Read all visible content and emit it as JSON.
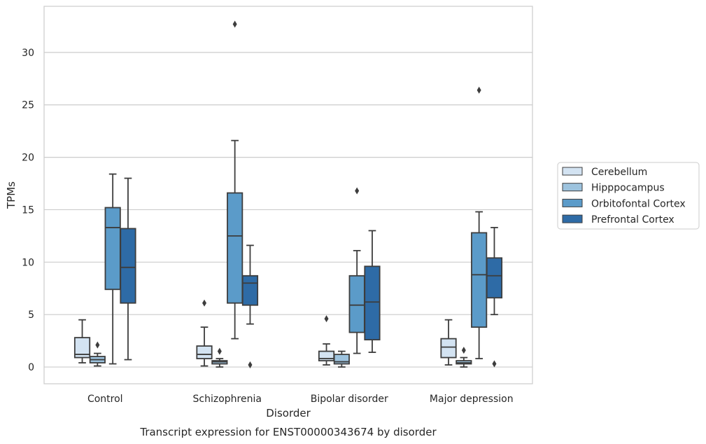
{
  "chart_data": {
    "type": "box",
    "title": "Transcript expression for ENST00000343674 by disorder",
    "xlabel": "Disorder",
    "ylabel": "TPMs",
    "ylim": [
      -1.6,
      34.4
    ],
    "yticks": [
      0,
      5,
      10,
      15,
      20,
      25,
      30
    ],
    "grid": "horizontal",
    "legend_position": "right",
    "categories": [
      "Control",
      "Schizophrenia",
      "Bipolar disorder",
      "Major depression"
    ],
    "series": [
      {
        "name": "Cerebellum",
        "color": "#d3e3f2",
        "boxes": [
          {
            "whislo": 0.4,
            "q1": 0.9,
            "med": 1.2,
            "q3": 2.8,
            "whishi": 4.5,
            "fliers": []
          },
          {
            "whislo": 0.1,
            "q1": 0.8,
            "med": 1.2,
            "q3": 2.0,
            "whishi": 3.8,
            "fliers": [
              6.1
            ]
          },
          {
            "whislo": 0.2,
            "q1": 0.6,
            "med": 0.8,
            "q3": 1.5,
            "whishi": 2.2,
            "fliers": [
              4.6
            ]
          },
          {
            "whislo": 0.2,
            "q1": 0.9,
            "med": 1.9,
            "q3": 2.7,
            "whishi": 4.5,
            "fliers": []
          }
        ]
      },
      {
        "name": "Hipppocampus",
        "color": "#9dc3de",
        "boxes": [
          {
            "whislo": 0.1,
            "q1": 0.4,
            "med": 0.7,
            "q3": 1.0,
            "whishi": 1.3,
            "fliers": [
              2.1
            ]
          },
          {
            "whislo": 0.0,
            "q1": 0.3,
            "med": 0.5,
            "q3": 0.6,
            "whishi": 0.8,
            "fliers": [
              1.5
            ]
          },
          {
            "whislo": 0.0,
            "q1": 0.3,
            "med": 0.5,
            "q3": 1.2,
            "whishi": 1.5,
            "fliers": []
          },
          {
            "whislo": 0.0,
            "q1": 0.3,
            "med": 0.4,
            "q3": 0.6,
            "whishi": 0.9,
            "fliers": [
              1.6
            ]
          }
        ]
      },
      {
        "name": "Orbitofontal Cortex",
        "color": "#5b9bc9",
        "boxes": [
          {
            "whislo": 0.3,
            "q1": 7.4,
            "med": 13.3,
            "q3": 15.2,
            "whishi": 18.4,
            "fliers": []
          },
          {
            "whislo": 2.7,
            "q1": 6.1,
            "med": 12.5,
            "q3": 16.6,
            "whishi": 21.6,
            "fliers": [
              32.7
            ]
          },
          {
            "whislo": 1.3,
            "q1": 3.3,
            "med": 5.9,
            "q3": 8.7,
            "whishi": 11.1,
            "fliers": [
              16.8
            ]
          },
          {
            "whislo": 0.8,
            "q1": 3.8,
            "med": 8.8,
            "q3": 12.8,
            "whishi": 14.8,
            "fliers": [
              26.4
            ]
          }
        ]
      },
      {
        "name": "Prefrontal Cortex",
        "color": "#2e6ba6",
        "boxes": [
          {
            "whislo": 0.7,
            "q1": 6.1,
            "med": 9.5,
            "q3": 13.2,
            "whishi": 18.0,
            "fliers": []
          },
          {
            "whislo": 4.1,
            "q1": 5.9,
            "med": 8.0,
            "q3": 8.7,
            "whishi": 11.6,
            "fliers": [
              0.2
            ]
          },
          {
            "whislo": 1.4,
            "q1": 2.6,
            "med": 6.2,
            "q3": 9.6,
            "whishi": 13.0,
            "fliers": []
          },
          {
            "whislo": 5.0,
            "q1": 6.6,
            "med": 8.7,
            "q3": 10.4,
            "whishi": 13.3,
            "fliers": [
              0.3
            ]
          }
        ]
      }
    ]
  }
}
